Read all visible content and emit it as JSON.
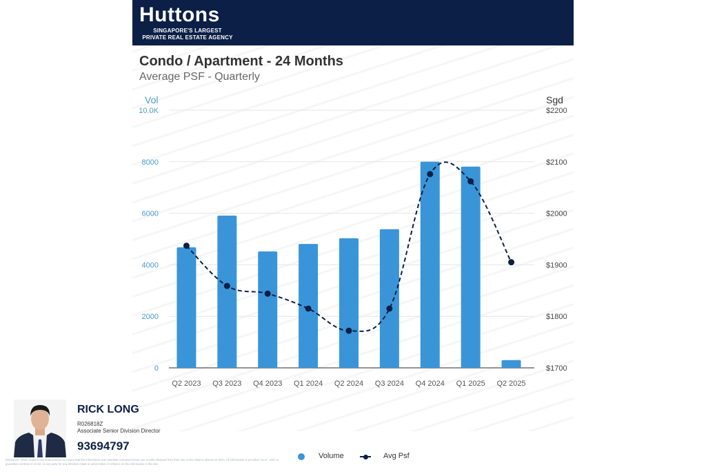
{
  "header": {
    "brand": "Huttons",
    "tagline_line1": "SINGAPORE'S LARGEST",
    "tagline_line2": "PRIVATE REAL ESTATE AGENCY",
    "watermark_text": "Huttons"
  },
  "colors": {
    "header_bg": "#0b1f47",
    "bar": "#3a95d8",
    "line": "#0b1f47",
    "left_axis_text": "#4a9bd1",
    "grid": "#e6e6e6"
  },
  "chart_data": {
    "type": "bar+line",
    "title": "Condo / Apartment - 24 Months",
    "subtitle": "Average PSF - Quarterly",
    "categories": [
      "Q2 2023",
      "Q3 2023",
      "Q4 2023",
      "Q1 2024",
      "Q2 2024",
      "Q3 2024",
      "Q4 2024",
      "Q1 2025",
      "Q2 2025"
    ],
    "series": [
      {
        "name": "Volume",
        "type": "bar",
        "axis": "left",
        "values": [
          4680,
          5910,
          4520,
          4810,
          5030,
          5380,
          8000,
          7810,
          300
        ]
      },
      {
        "name": "Avg Psf",
        "type": "line",
        "style": "dashed",
        "axis": "right",
        "values": [
          1937,
          1859,
          1844,
          1815,
          1772,
          1815,
          2076,
          2062,
          1905
        ]
      }
    ],
    "left_axis": {
      "label": "Vol",
      "range": [
        0,
        10000
      ],
      "ticks": [
        0,
        2000,
        4000,
        6000,
        8000,
        10000
      ],
      "tick_labels": [
        "0",
        "2000",
        "4000",
        "6000",
        "8000",
        "10.0K"
      ]
    },
    "right_axis": {
      "label": "Sgd",
      "range": [
        1700,
        2200
      ],
      "ticks": [
        1700,
        1800,
        1900,
        2000,
        2100,
        2200
      ],
      "tick_labels": [
        "$1700",
        "$1800",
        "$1900",
        "$2000",
        "$2100",
        "$2200"
      ]
    },
    "grid": true,
    "legend_position": "bottom",
    "legend": [
      "Volume",
      "Avg Psf"
    ]
  },
  "agent": {
    "name": "RICK LONG",
    "reg_no": "R026818Z",
    "role": "Associate Senior Division Director",
    "phone": "93694797"
  },
  "disclaimer": "Disclaimer: While Huttons has endeavoured to ensure that the information and materials contained herein are results obtained from their use or the reliance placed on them. All information is provided \"as is\", with no guarantee contract or in tort, to any party for any decision made or action taken in reliance on the information in this doc"
}
